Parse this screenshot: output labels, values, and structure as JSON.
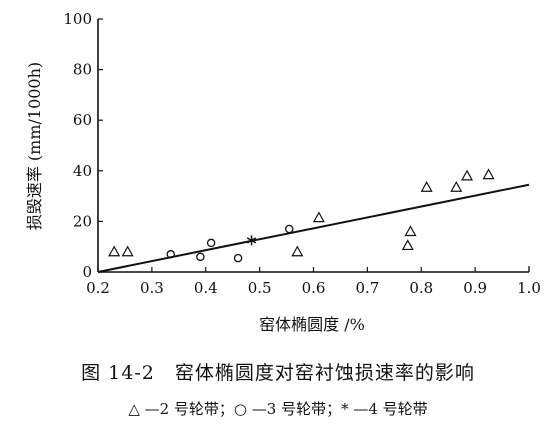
{
  "chart_data": {
    "type": "scatter",
    "xlabel": "窑体椭圆度 /%",
    "ylabel": "损毁速率 (mm/1000h)",
    "xlim": [
      0.2,
      1.0
    ],
    "ylim": [
      0,
      100
    ],
    "x_ticks": [
      "0.2",
      "0.3",
      "0.4",
      "0.5",
      "0.6",
      "0.7",
      "0.8",
      "0.9",
      "1.0"
    ],
    "y_ticks": [
      "0",
      "20",
      "40",
      "60",
      "80",
      "100"
    ],
    "grid": false,
    "series": [
      {
        "name": "2 号轮带",
        "marker": "triangle",
        "points": [
          [
            0.23,
            8
          ],
          [
            0.255,
            8
          ],
          [
            0.57,
            8
          ],
          [
            0.61,
            21.5
          ],
          [
            0.775,
            10.5
          ],
          [
            0.78,
            16
          ],
          [
            0.81,
            33.5
          ],
          [
            0.865,
            33.5
          ],
          [
            0.885,
            38
          ],
          [
            0.925,
            38.5
          ]
        ]
      },
      {
        "name": "3 号轮带",
        "marker": "circle",
        "points": [
          [
            0.335,
            7
          ],
          [
            0.39,
            6
          ],
          [
            0.41,
            11.5
          ],
          [
            0.46,
            5.5
          ],
          [
            0.555,
            17
          ]
        ]
      },
      {
        "name": "4 号轮带",
        "marker": "star",
        "points": [
          [
            0.485,
            12.5
          ]
        ]
      }
    ],
    "fit_line": {
      "from": [
        0.2,
        0
      ],
      "to": [
        1.0,
        34.5
      ]
    }
  },
  "caption": {
    "title": "图 14-2　窑体椭圆度对窑衬蚀损速率的影响",
    "legend": "△ —2 号轮带；○ —3 号轮带；* —4 号轮带"
  }
}
